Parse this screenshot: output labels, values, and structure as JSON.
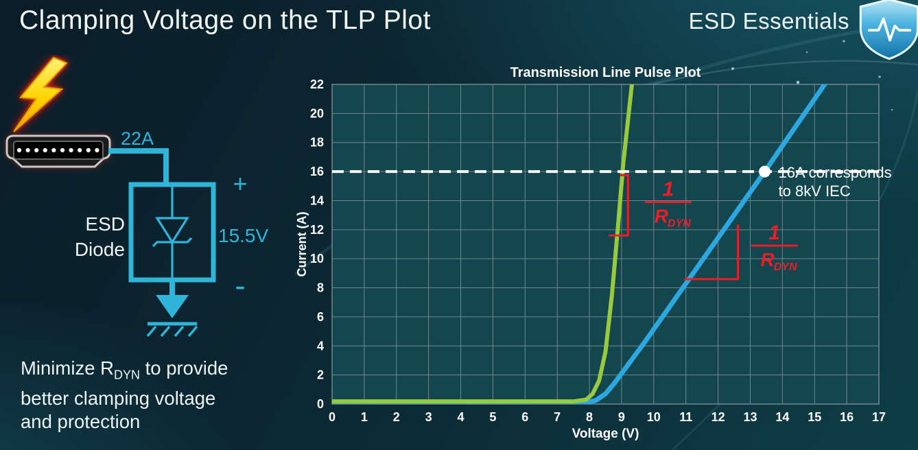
{
  "header": {
    "title": "Clamping Voltage on the TLP Plot",
    "brand": "ESD Essentials"
  },
  "colors": {
    "accent": "#2fb5da",
    "text": "#f2f7f7",
    "annotation-red": "#ee1c23",
    "bolt-yellow": "#ffd400"
  },
  "diagram": {
    "current_label": "22A",
    "component_line1": "ESD",
    "component_line2": "Diode",
    "plus_label": "+",
    "voltage_label": "15.5V",
    "minus_label": "-"
  },
  "footnote": {
    "line1_pre": "Minimize R",
    "line1_sub": "DYN",
    "line1_post": " to provide",
    "line2": "better clamping voltage",
    "line3": "and protection"
  },
  "chart_data": {
    "type": "line",
    "title": "Transmission Line Pulse Plot",
    "xlabel": "Voltage (V)",
    "ylabel": "Current (A)",
    "xlim": [
      0,
      17
    ],
    "ylim": [
      0,
      22
    ],
    "x_ticks": [
      0,
      1,
      2,
      3,
      4,
      5,
      6,
      7,
      8,
      9,
      10,
      11,
      12,
      13,
      14,
      15,
      16,
      17
    ],
    "y_ticks": [
      0,
      2,
      4,
      6,
      8,
      10,
      12,
      14,
      16,
      18,
      20,
      22
    ],
    "grid": true,
    "legend": "none",
    "plot_bg": "#144650",
    "grid_color": "#7e9094",
    "series": [
      {
        "id": "higher-rdyn-diode-blue",
        "color": "#2da7e0",
        "width": 7,
        "points": [
          [
            0,
            0.1
          ],
          [
            7.9,
            0.1
          ],
          [
            8.2,
            0.25
          ],
          [
            8.5,
            0.7
          ],
          [
            8.8,
            1.5
          ],
          [
            9.2,
            2.7
          ],
          [
            9.7,
            4.2
          ],
          [
            13.45,
            16
          ],
          [
            15.5,
            22.6
          ]
        ]
      },
      {
        "id": "low-rdyn-diode-green",
        "color": "#97ca3d",
        "width": 6,
        "points": [
          [
            0,
            0.18
          ],
          [
            7.5,
            0.18
          ],
          [
            7.9,
            0.3
          ],
          [
            8.1,
            0.7
          ],
          [
            8.3,
            1.6
          ],
          [
            8.5,
            3.6
          ],
          [
            8.7,
            7.5
          ],
          [
            8.9,
            12.5
          ],
          [
            9.05,
            16.5
          ],
          [
            9.35,
            22.6
          ]
        ]
      }
    ],
    "reference_line": {
      "y": 16,
      "color": "#ffffff",
      "style": "dashed"
    },
    "marker": {
      "x": 13.45,
      "y": 16,
      "label_line1": "16A corresponds",
      "label_line2": "to 8kV IEC"
    },
    "annotations": {
      "color": "#ee1c23",
      "fractions": [
        {
          "num": "1",
          "den": "R",
          "den_sub": "DYN",
          "x": 10.45,
          "y": 13.9
        },
        {
          "num": "1",
          "den": "R",
          "den_sub": "DYN",
          "x": 13.75,
          "y": 10.9
        }
      ],
      "slope_polylines": [
        [
          [
            8.95,
            15.75
          ],
          [
            9.2,
            15.75
          ],
          [
            9.2,
            11.6
          ],
          [
            8.6,
            11.6
          ]
        ],
        [
          [
            10.95,
            8.6
          ],
          [
            12.62,
            8.6
          ],
          [
            12.62,
            12.35
          ]
        ]
      ]
    }
  }
}
